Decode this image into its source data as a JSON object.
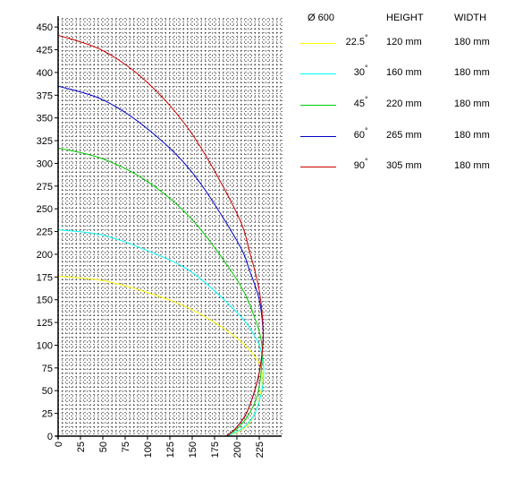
{
  "chart_data": {
    "type": "line",
    "title": "",
    "xlabel": "",
    "ylabel": "",
    "xlim": [
      0,
      250
    ],
    "ylim": [
      0,
      460
    ],
    "x_ticks": [
      0,
      25,
      50,
      75,
      100,
      125,
      150,
      175,
      200,
      225
    ],
    "y_ticks": [
      0,
      25,
      50,
      75,
      100,
      125,
      150,
      175,
      200,
      225,
      250,
      275,
      300,
      325,
      350,
      375,
      400,
      425,
      450
    ],
    "grid": "dotted",
    "legend": {
      "placement": "top-right",
      "header": {
        "diameter": "Ø 600",
        "height": "HEIGHT",
        "width": "WIDTH"
      },
      "entries": [
        {
          "angle": "22.5",
          "deg": "°",
          "height": "120 mm",
          "width": "180 mm",
          "color": "#ffff00"
        },
        {
          "angle": "30",
          "deg": "°",
          "height": "160 mm",
          "width": "180 mm",
          "color": "#00ffff"
        },
        {
          "angle": "45",
          "deg": "°",
          "height": "220 mm",
          "width": "180 mm",
          "color": "#00cc00"
        },
        {
          "angle": "60",
          "deg": "°",
          "height": "265 mm",
          "width": "180 mm",
          "color": "#0000cc"
        },
        {
          "angle": "90",
          "deg": "°",
          "height": "305 mm",
          "width": "180 mm",
          "color": "#cc0000"
        }
      ]
    },
    "series": [
      {
        "color": "#ffff00",
        "x": [
          0,
          50,
          100,
          150,
          200,
          225,
          228,
          225,
          220,
          212,
          200,
          188
        ],
        "y": [
          176,
          171,
          158,
          139,
          108,
          80,
          60,
          40,
          25,
          12,
          4,
          0
        ]
      },
      {
        "color": "#00ffff",
        "x": [
          0,
          50,
          100,
          150,
          200,
          220,
          228,
          230,
          228,
          220,
          208,
          190
        ],
        "y": [
          227,
          221,
          204,
          180,
          136,
          110,
          90,
          70,
          50,
          25,
          10,
          0
        ]
      },
      {
        "color": "#00cc00",
        "x": [
          0,
          50,
          100,
          150,
          200,
          220,
          228,
          227,
          222,
          212,
          200,
          188
        ],
        "y": [
          317,
          305,
          280,
          238,
          172,
          130,
          100,
          70,
          42,
          22,
          8,
          0
        ]
      },
      {
        "color": "#0000cc",
        "x": [
          0,
          50,
          100,
          150,
          200,
          215,
          225,
          229,
          229,
          225,
          218,
          210,
          198,
          188
        ],
        "y": [
          385,
          370,
          338,
          290,
          215,
          180,
          150,
          120,
          100,
          70,
          44,
          24,
          8,
          0
        ]
      },
      {
        "color": "#cc0000",
        "x": [
          0,
          50,
          100,
          150,
          200,
          215,
          225,
          229,
          229,
          225,
          218,
          210,
          198,
          188
        ],
        "y": [
          441,
          424,
          389,
          332,
          245,
          200,
          160,
          125,
          100,
          70,
          44,
          24,
          8,
          0
        ]
      }
    ]
  }
}
